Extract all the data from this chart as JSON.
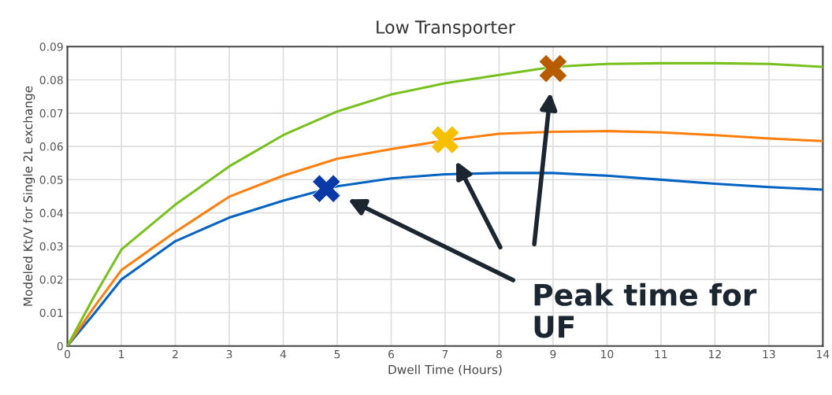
{
  "chart_data": {
    "type": "line",
    "title": "Low Transporter",
    "xlabel": "Dwell Time (Hours)",
    "ylabel": "Modeled Kt/V for Single 2L exchange",
    "xlim": [
      0,
      14
    ],
    "xticks": [
      0,
      1,
      2,
      3,
      4,
      5,
      6,
      7,
      8,
      9,
      10,
      11,
      12,
      13,
      14
    ],
    "ylim": [
      0,
      0.09
    ],
    "yticks": [
      0,
      0.01,
      0.02,
      0.03,
      0.04,
      0.05,
      0.06,
      0.07,
      0.08,
      0.09
    ],
    "grid": true,
    "marker": "none",
    "line_style": "solid",
    "x": [
      0,
      0.5,
      1,
      2,
      3,
      4,
      5,
      6,
      7,
      8,
      9,
      10,
      11,
      12,
      13,
      14
    ],
    "series": [
      {
        "color": "#0563c1",
        "values": [
          0,
          0.0098,
          0.02,
          0.0315,
          0.0386,
          0.0437,
          0.048,
          0.0504,
          0.0516,
          0.052,
          0.052,
          0.0512,
          0.05,
          0.0488,
          0.0478,
          0.047
        ]
      },
      {
        "color": "#ff7f0e",
        "values": [
          0,
          0.0118,
          0.0228,
          0.0343,
          0.0449,
          0.0512,
          0.0563,
          0.0592,
          0.0618,
          0.0638,
          0.0644,
          0.0646,
          0.0642,
          0.0634,
          0.0624,
          0.0616
        ]
      },
      {
        "color": "#78c01e",
        "values": [
          0,
          0.015,
          0.029,
          0.0425,
          0.054,
          0.0634,
          0.0705,
          0.0756,
          0.079,
          0.0815,
          0.0839,
          0.0848,
          0.085,
          0.085,
          0.0848,
          0.0839
        ]
      },
      {
        "type": "scatter",
        "marker": "cross",
        "color": "#0a3aa8",
        "x": [
          4.8
        ],
        "values": [
          0.0473
        ]
      },
      {
        "type": "scatter",
        "marker": "cross",
        "color": "#f5c000",
        "x": [
          7.0
        ],
        "values": [
          0.062
        ]
      },
      {
        "type": "scatter",
        "marker": "cross",
        "color": "#b85c00",
        "x": [
          9.0
        ],
        "values": [
          0.0834
        ]
      }
    ],
    "annotations": [
      "Peak time for UF"
    ]
  }
}
